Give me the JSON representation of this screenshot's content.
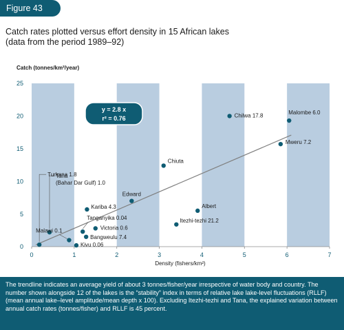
{
  "figure_label": "Figure 43",
  "title_lines": [
    "Catch rates plotted versus effort density in 15 African lakes",
    "(data from the period 1989–92)"
  ],
  "caption": "The trendline indicates an average yield of about 3 tonnes/fisher/year irrespective of water body and country. The number shown alongside 12 of the lakes is the “stability” index in terms of relative lake lake-level fluctuations (RLLF) (mean annual lake–level amplitude/mean depth x 100). Excluding Itezhi-tezhi and Tana, the explained variation between annual catch rates (tonnes/fisher) and RLLF is 45 percent.",
  "colors": {
    "accent": "#0f5c73",
    "band": "#b9cde0",
    "point": "#0f5c73",
    "trendline": "#808080"
  },
  "chart_data": {
    "type": "scatter",
    "title": "",
    "xlabel": "Density (fishers/km²)",
    "ylabel": "Catch (tonnes/km²/year)",
    "xlim": [
      0,
      7
    ],
    "ylim": [
      0,
      25
    ],
    "xticks": [
      0,
      1,
      2,
      3,
      4,
      5,
      6,
      7
    ],
    "yticks": [
      0,
      5,
      10,
      15,
      20,
      25
    ],
    "grid": false,
    "shaded_x_bands": [
      [
        0,
        1
      ],
      [
        2,
        3
      ],
      [
        4,
        5
      ],
      [
        6,
        7
      ]
    ],
    "trendline": {
      "equation": "y = 2.8 x",
      "r2_label": "r² = 0.76",
      "slope": 2.8,
      "x_range": [
        0.1,
        6.1
      ]
    },
    "points": [
      {
        "label": "Turkana 1.8",
        "x": 0.18,
        "y": 0.3
      },
      {
        "label": "Tana (Bahar Dar Gulf) 1.0",
        "x": 0.42,
        "y": 2.2
      },
      {
        "label": "Malawi 0.1",
        "x": 0.88,
        "y": 1.0
      },
      {
        "label": "Kivu 0.06",
        "x": 1.05,
        "y": 0.2
      },
      {
        "label": "Tanganyika 0.04",
        "x": 1.2,
        "y": 2.3
      },
      {
        "label": "Bangweulu 7.4",
        "x": 1.28,
        "y": 1.5
      },
      {
        "label": "Kariba 4.3",
        "x": 1.3,
        "y": 5.7
      },
      {
        "label": "Victoria 0.6",
        "x": 1.5,
        "y": 2.8
      },
      {
        "label": "Edward",
        "x": 2.35,
        "y": 7.0
      },
      {
        "label": "Chiuta",
        "x": 3.1,
        "y": 12.4
      },
      {
        "label": "Itezhi-tezhi 21.2",
        "x": 3.4,
        "y": 3.4
      },
      {
        "label": "Albert",
        "x": 3.9,
        "y": 5.5
      },
      {
        "label": "Chilwa 17.8",
        "x": 4.65,
        "y": 20.0
      },
      {
        "label": "Mweru 7.2",
        "x": 5.85,
        "y": 15.7
      },
      {
        "label": "Malombe 6.0",
        "x": 6.05,
        "y": 19.3
      }
    ]
  }
}
